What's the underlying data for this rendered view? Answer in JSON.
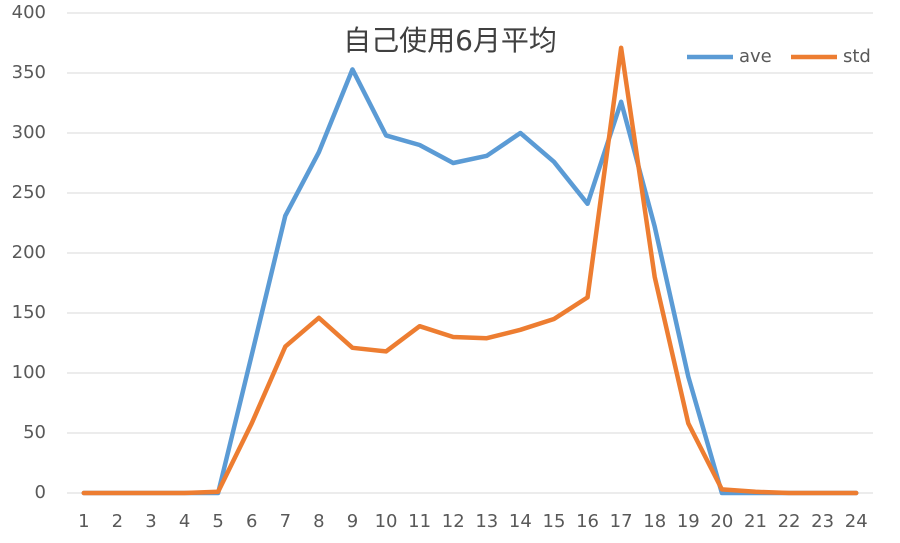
{
  "chart_data": {
    "type": "line",
    "title": "自己使用6月平均",
    "categories": [
      "1",
      "2",
      "3",
      "4",
      "5",
      "6",
      "7",
      "8",
      "9",
      "10",
      "11",
      "12",
      "13",
      "14",
      "15",
      "16",
      "17",
      "18",
      "19",
      "20",
      "21",
      "22",
      "23",
      "24"
    ],
    "series": [
      {
        "name": "ave",
        "color": "#5b9bd5",
        "values": [
          0,
          0,
          0,
          0,
          0,
          115,
          231,
          284,
          353,
          298,
          290,
          275,
          281,
          300,
          276,
          241,
          326,
          222,
          97,
          0,
          0,
          0,
          0,
          0
        ]
      },
      {
        "name": "std",
        "color": "#ed7d31",
        "values": [
          0,
          0,
          0,
          0,
          1,
          58,
          122,
          146,
          121,
          118,
          139,
          130,
          129,
          136,
          145,
          163,
          371,
          180,
          58,
          3,
          1,
          0,
          0,
          0
        ]
      }
    ],
    "ylim": [
      0,
      400
    ],
    "yticks": [
      0,
      50,
      100,
      150,
      200,
      250,
      300,
      350,
      400
    ],
    "grid": true,
    "legend": "top-right"
  }
}
